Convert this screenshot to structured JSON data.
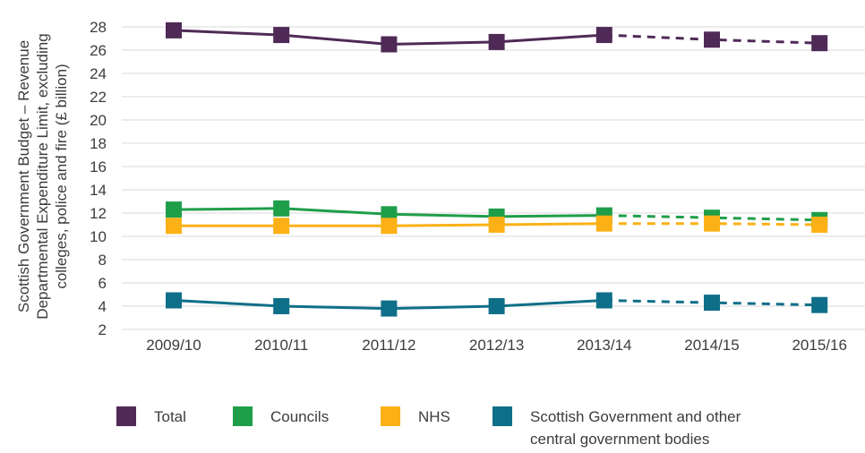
{
  "chart_data": {
    "type": "line",
    "ylabel_lines": [
      "Scottish Government Budget – Revenue",
      "Departmental Expenditure Limit, excluding",
      "colleges, police and fire (£ billion)"
    ],
    "categories": [
      "2009/10",
      "2010/11",
      "2011/12",
      "2012/13",
      "2013/14",
      "2014/15",
      "2015/16"
    ],
    "ylim": [
      2,
      28
    ],
    "yticks": [
      2,
      4,
      6,
      8,
      10,
      12,
      14,
      16,
      18,
      20,
      22,
      24,
      26,
      28
    ],
    "grid": true,
    "dashed_from_index": 4,
    "legend_position": "bottom",
    "series": [
      {
        "name": "Total",
        "color": "#4f2a57",
        "values": [
          27.7,
          27.3,
          26.5,
          26.7,
          27.3,
          26.9,
          26.6
        ]
      },
      {
        "name": "Councils",
        "color": "#1f9e4a",
        "values": [
          12.3,
          12.4,
          11.9,
          11.7,
          11.8,
          11.6,
          11.4
        ]
      },
      {
        "name": "NHS",
        "color": "#fbb116",
        "values": [
          10.9,
          10.9,
          10.9,
          11.0,
          11.1,
          11.1,
          11.0
        ]
      },
      {
        "name": "Scottish Government and other central government bodies",
        "color": "#0f6f88",
        "values": [
          4.5,
          4.0,
          3.8,
          4.0,
          4.5,
          4.3,
          4.1
        ]
      }
    ]
  }
}
